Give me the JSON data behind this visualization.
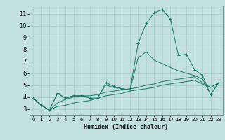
{
  "xlabel": "Humidex (Indice chaleur)",
  "background_color": "#c2e0e0",
  "grid_color": "#a8cccc",
  "line_color": "#1a7868",
  "xlim": [
    -0.5,
    23.5
  ],
  "ylim": [
    2.5,
    11.7
  ],
  "xticks": [
    0,
    1,
    2,
    3,
    4,
    5,
    6,
    7,
    8,
    9,
    10,
    11,
    12,
    13,
    14,
    15,
    16,
    17,
    18,
    19,
    20,
    21,
    22,
    23
  ],
  "yticks": [
    3,
    4,
    5,
    6,
    7,
    8,
    9,
    10,
    11
  ],
  "lines": [
    {
      "x": [
        0,
        1,
        2,
        3,
        4,
        5,
        6,
        7,
        8,
        9,
        10,
        11,
        12,
        13,
        14,
        15,
        16,
        17,
        18,
        19,
        20,
        21,
        22,
        23
      ],
      "y": [
        3.9,
        3.3,
        2.9,
        4.3,
        3.9,
        4.1,
        4.1,
        3.9,
        3.9,
        5.2,
        4.9,
        4.7,
        4.6,
        8.5,
        10.2,
        11.1,
        11.35,
        10.6,
        7.5,
        7.6,
        6.3,
        5.8,
        4.2,
        5.2
      ],
      "marker": "+"
    },
    {
      "x": [
        0,
        1,
        2,
        3,
        4,
        5,
        6,
        7,
        8,
        9,
        10,
        11,
        12,
        13,
        14,
        15,
        16,
        17,
        18,
        19,
        20,
        21,
        22,
        23
      ],
      "y": [
        3.9,
        3.3,
        2.9,
        3.2,
        3.3,
        3.5,
        3.6,
        3.7,
        3.9,
        4.1,
        4.2,
        4.3,
        4.5,
        4.6,
        4.7,
        4.8,
        5.0,
        5.1,
        5.2,
        5.3,
        5.4,
        5.1,
        4.8,
        5.2
      ],
      "marker": null
    },
    {
      "x": [
        0,
        1,
        2,
        3,
        4,
        5,
        6,
        7,
        8,
        9,
        10,
        11,
        12,
        13,
        14,
        15,
        16,
        17,
        18,
        19,
        20,
        21,
        22,
        23
      ],
      "y": [
        3.9,
        3.3,
        2.9,
        3.5,
        3.8,
        4.0,
        4.1,
        4.1,
        4.2,
        4.4,
        4.5,
        4.6,
        4.7,
        4.8,
        5.0,
        5.1,
        5.3,
        5.4,
        5.5,
        5.6,
        5.7,
        5.2,
        4.8,
        5.2
      ],
      "marker": null
    },
    {
      "x": [
        0,
        1,
        2,
        3,
        4,
        5,
        6,
        7,
        8,
        9,
        10,
        11,
        12,
        13,
        14,
        15,
        16,
        17,
        18,
        19,
        20,
        21,
        22,
        23
      ],
      "y": [
        3.9,
        3.3,
        2.9,
        4.3,
        3.9,
        4.1,
        4.1,
        4.0,
        4.0,
        5.0,
        4.8,
        4.7,
        4.6,
        7.3,
        7.8,
        7.1,
        6.8,
        6.5,
        6.2,
        6.0,
        5.8,
        5.5,
        4.2,
        5.2
      ],
      "marker": null
    }
  ]
}
